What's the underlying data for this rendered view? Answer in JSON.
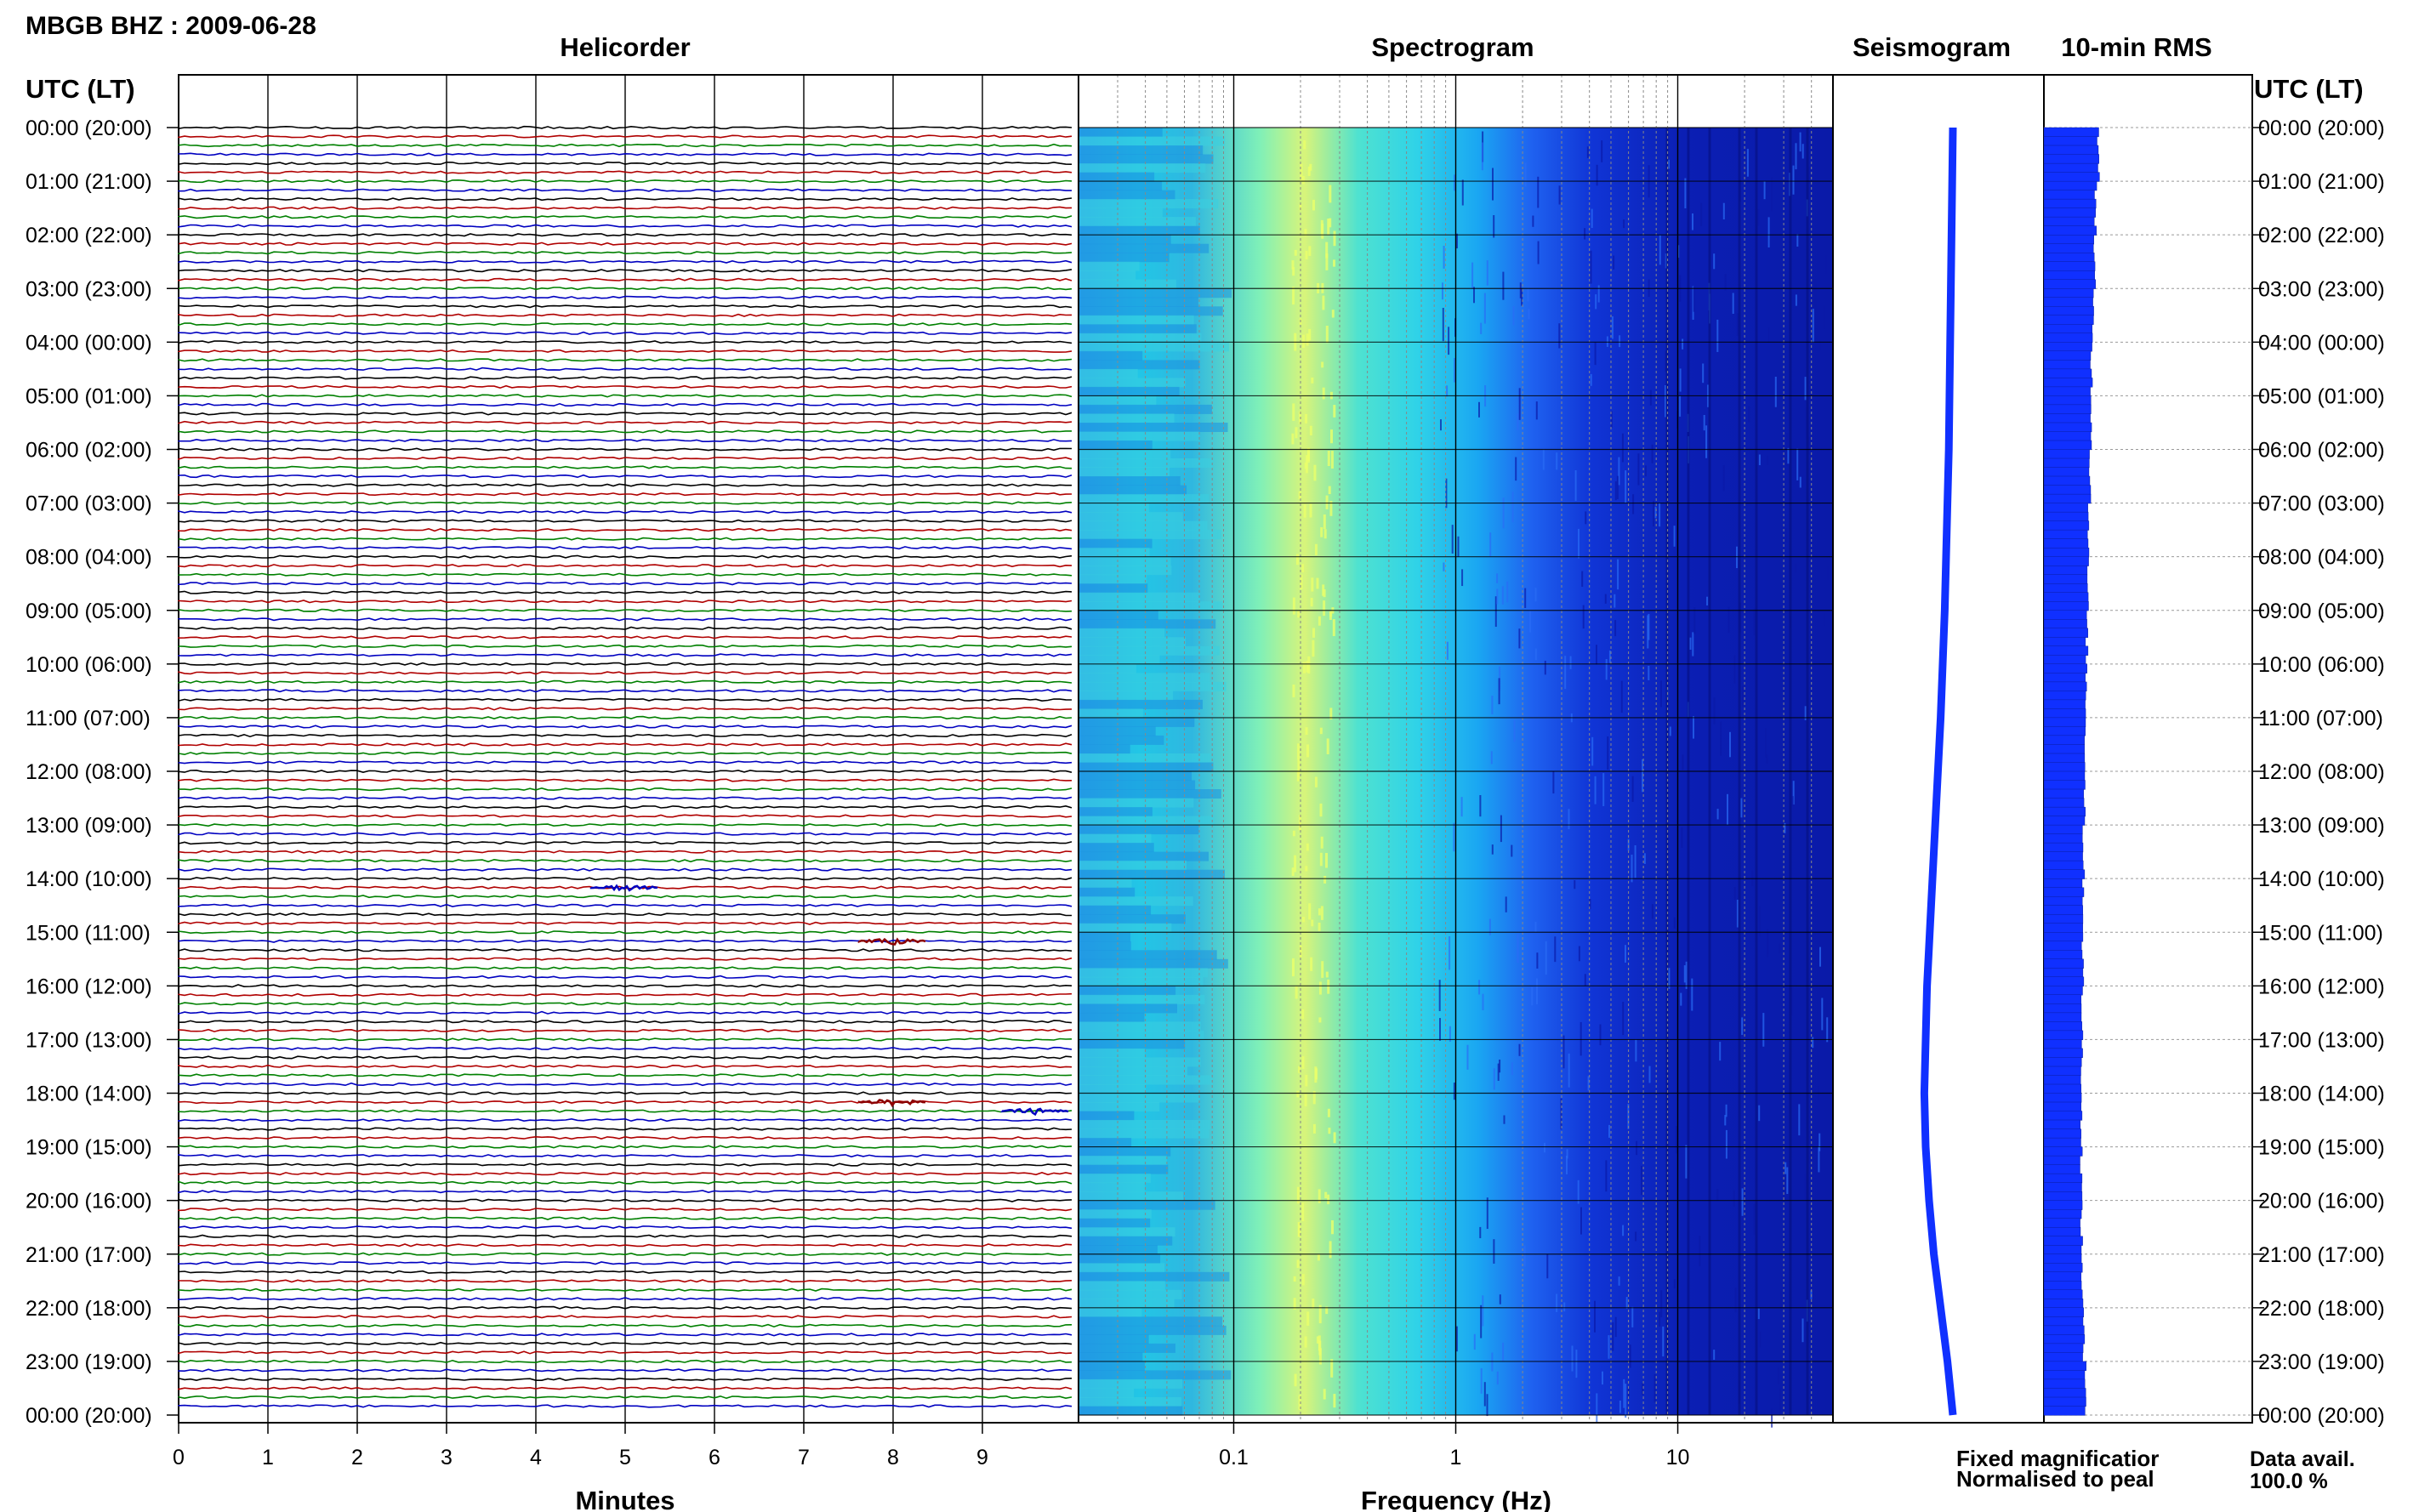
{
  "header": {
    "station_title": "MBGB BHZ : 2009-06-28"
  },
  "panels": {
    "helicorder": "Helicorder",
    "spectrogram": "Spectrogram",
    "seismogram": "Seismogram",
    "rms": "10-min RMS"
  },
  "axis": {
    "time_header_left": "UTC (LT)",
    "time_header_right": "UTC (LT)",
    "minutes_label": "Minutes",
    "frequency_label": "Frequency (Hz)",
    "minute_ticks": [
      "0",
      "1",
      "2",
      "3",
      "4",
      "5",
      "6",
      "7",
      "8",
      "9"
    ],
    "frequency_ticks": [
      "0.1",
      "1",
      "10"
    ],
    "time_ticks": [
      "00:00 (20:00)",
      "01:00 (21:00)",
      "02:00 (22:00)",
      "03:00 (23:00)",
      "04:00 (00:00)",
      "05:00 (01:00)",
      "06:00 (02:00)",
      "07:00 (03:00)",
      "08:00 (04:00)",
      "09:00 (05:00)",
      "10:00 (06:00)",
      "11:00 (07:00)",
      "12:00 (08:00)",
      "13:00 (09:00)",
      "14:00 (10:00)",
      "15:00 (11:00)",
      "16:00 (12:00)",
      "17:00 (13:00)",
      "18:00 (14:00)",
      "19:00 (15:00)",
      "20:00 (16:00)",
      "21:00 (17:00)",
      "22:00 (18:00)",
      "23:00 (19:00)",
      "00:00 (20:00)"
    ]
  },
  "legend": {
    "fixed": "Fixed magnificatior",
    "normalised": "Normalised to peal",
    "fixed_color": "#0000ff",
    "normalised_color": "#ff0000"
  },
  "availability": {
    "label": "Data avail.",
    "value": "100.0 %"
  },
  "chart_data": {
    "type": "heatmap",
    "title": "MBGB BHZ : 2009-06-28",
    "trace_colors": [
      "#000000",
      "#b00000",
      "#008000",
      "#0000c0"
    ],
    "event_color": "#8b0000",
    "helicorder_events": [
      {
        "row": 85,
        "minute": 5.0,
        "color": "#0000c0"
      },
      {
        "row": 91,
        "minute": 8.0,
        "color": "#8b0000"
      },
      {
        "row": 109,
        "minute": 8.0,
        "color": "#8b0000"
      },
      {
        "row": 110,
        "minute": 9.6,
        "color": "#0000c0"
      }
    ],
    "helicorder": {
      "minutes_per_line": 10,
      "lines": 144,
      "xlim": [
        0,
        10
      ]
    },
    "spectrogram": {
      "xscale": "log",
      "xlim": [
        0.02,
        50
      ],
      "peak_band_hz": [
        0.2,
        0.3
      ],
      "colormap": [
        "#00008b",
        "#1e3cff",
        "#00bfff",
        "#7fffd4",
        "#e6ff66"
      ]
    },
    "rms": {
      "values": [
        0.8,
        0.76,
        0.74,
        0.72,
        0.7,
        0.7,
        0.68,
        0.66,
        0.64,
        0.63,
        0.62,
        0.61,
        0.6,
        0.58,
        0.58,
        0.57,
        0.56,
        0.56,
        0.55,
        0.55,
        0.55,
        0.56,
        0.58,
        0.62
      ]
    },
    "seismogram": {
      "values": [
        0.2,
        0.19,
        0.18,
        0.17,
        0.16,
        0.15,
        0.14,
        0.12,
        0.1,
        0.08,
        0.05,
        0.02,
        -0.02,
        -0.06,
        -0.1,
        -0.14,
        -0.18,
        -0.2,
        -0.22,
        -0.2,
        -0.15,
        -0.08,
        0.02,
        0.12,
        0.2
      ]
    }
  }
}
